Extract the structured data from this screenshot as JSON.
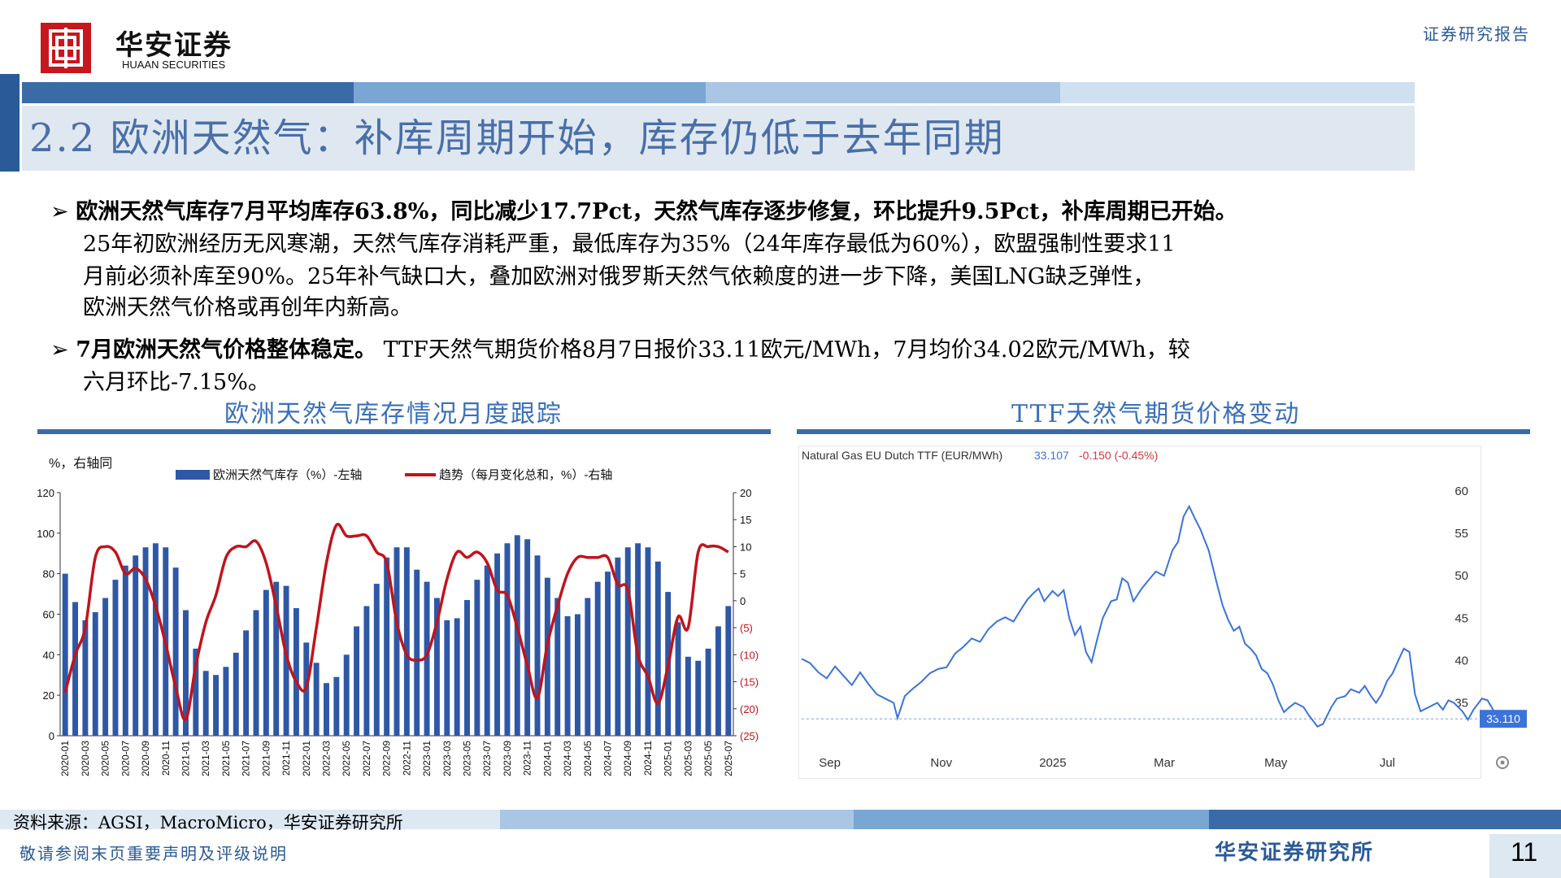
{
  "header": {
    "logo_cn": "华安证券",
    "logo_en": "HUAAN SECURITIES",
    "report_type": "证券研究报告",
    "logo_glyph": "出"
  },
  "title": "2.2 欧洲天然气：补库周期开始，库存仍低于去年同期",
  "bullets": [
    {
      "marker": "➢",
      "bold": "欧洲天然气库存7月平均库存63.8%，同比减少17.7Pct，天然气库存逐步修复，环比提升9.5Pct，补库周期已开始。",
      "lines": [
        "25年初欧洲经历无风寒潮，天然气库存消耗严重，最低库存为35%（24年库存最低为60%），欧盟强制性要求11",
        "月前必须补库至90%。25年补气缺口大，叠加欧洲对俄罗斯天然气依赖度的进一步下降，美国LNG缺乏弹性，",
        "欧洲天然气价格或再创年内新高。"
      ]
    },
    {
      "marker": "➢",
      "bold": "7月欧洲天然气价格整体稳定。",
      "rest": " TTF天然气期货价格8月7日报价33.11欧元/MWh，7月均价34.02欧元/MWh，较",
      "lines": [
        "六月环比-7.15%。"
      ]
    }
  ],
  "chart_titles": {
    "left": "欧洲天然气库存情况月度跟踪",
    "right": "TTF天然气期货价格变动"
  },
  "footer": {
    "source": "资料来源：AGSI，MacroMicro，华安证券研究所",
    "notice": "敬请参阅末页重要声明及评级说明",
    "institute": "华安证券研究所",
    "page": "11"
  },
  "colors": {
    "brand_blue": "#2a5a97",
    "bar_blue": "#2e58a6",
    "trend_red": "#c0141c",
    "ttf_line": "#3b73d9",
    "logo_red": "#c8161d"
  },
  "chart_data": [
    {
      "type": "bar",
      "title": "",
      "unit_label": "%，右轴同",
      "categories": [
        "2020-01",
        "2020-02",
        "2020-03",
        "2020-04",
        "2020-05",
        "2020-06",
        "2020-07",
        "2020-08",
        "2020-09",
        "2020-10",
        "2020-11",
        "2020-12",
        "2021-01",
        "2021-02",
        "2021-03",
        "2021-04",
        "2021-05",
        "2021-06",
        "2021-07",
        "2021-08",
        "2021-09",
        "2021-10",
        "2021-11",
        "2021-12",
        "2022-01",
        "2022-02",
        "2022-03",
        "2022-04",
        "2022-05",
        "2022-06",
        "2022-07",
        "2022-08",
        "2022-09",
        "2022-10",
        "2022-11",
        "2022-12",
        "2023-01",
        "2023-02",
        "2023-03",
        "2023-04",
        "2023-05",
        "2023-06",
        "2023-07",
        "2023-08",
        "2023-09",
        "2023-10",
        "2023-11",
        "2023-12",
        "2024-01",
        "2024-02",
        "2024-03",
        "2024-04",
        "2024-05",
        "2024-06",
        "2024-07",
        "2024-08",
        "2024-09",
        "2024-10",
        "2024-11",
        "2024-12",
        "2025-01",
        "2025-02",
        "2025-03",
        "2025-04",
        "2025-05",
        "2025-06",
        "2025-07"
      ],
      "x_tick_labels": [
        "2020-01",
        "2020-03",
        "2020-05",
        "2020-07",
        "2020-09",
        "2020-11",
        "2021-01",
        "2021-03",
        "2021-05",
        "2021-07",
        "2021-09",
        "2021-11",
        "2022-01",
        "2022-03",
        "2022-05",
        "2022-07",
        "2022-09",
        "2022-11",
        "2023-01",
        "2023-03",
        "2023-05",
        "2023-07",
        "2023-09",
        "2023-11",
        "2024-01",
        "2024-03",
        "2024-05",
        "2024-07",
        "2024-09",
        "2024-11",
        "2025-01",
        "2025-03",
        "2025-05",
        "2025-07"
      ],
      "series": [
        {
          "name": "欧洲天然气库存（%）-左轴",
          "axis": "left",
          "values": [
            80,
            66,
            57,
            61,
            68,
            77,
            84,
            89,
            93,
            95,
            93,
            83,
            62,
            43,
            32,
            30,
            34,
            41,
            52,
            62,
            72,
            76,
            74,
            63,
            46,
            36,
            26,
            29,
            40,
            54,
            64,
            75,
            88,
            93,
            93,
            82,
            76,
            68,
            57,
            58,
            67,
            77,
            84,
            90,
            95,
            99,
            97,
            89,
            78,
            68,
            59,
            60,
            68,
            76,
            81,
            88,
            93,
            95,
            93,
            86,
            71,
            56,
            39,
            37,
            43,
            54,
            64
          ]
        },
        {
          "name": "趋势（每月变化总和，%）-右轴",
          "axis": "right",
          "values": [
            -17,
            -10,
            -5,
            8,
            10,
            9,
            5,
            6,
            4,
            -1,
            -8,
            -16,
            -22,
            -12,
            -4,
            1,
            8,
            10,
            10,
            11,
            7,
            -1,
            -10,
            -15,
            -16,
            -5,
            7,
            14,
            12,
            12,
            12,
            9,
            7,
            -4,
            -10,
            -11,
            -10,
            -4,
            4,
            9,
            8,
            9,
            7,
            2,
            1,
            -5,
            -12,
            -18,
            -8,
            -1,
            5,
            8,
            8,
            8,
            8,
            3,
            2,
            -10,
            -14,
            -19,
            -12,
            -3,
            -5,
            9,
            10,
            10,
            9
          ]
        }
      ],
      "left_axis": {
        "ticks": [
          0,
          20,
          40,
          60,
          80,
          100,
          120
        ],
        "ylim": [
          0,
          120
        ]
      },
      "right_axis": {
        "ticks": [
          "20",
          "15",
          "10",
          "5",
          "0",
          "(5)",
          "(10)",
          "(15)",
          "(20)",
          "(25)"
        ],
        "ylim": [
          -25,
          20
        ]
      },
      "legend": "top"
    },
    {
      "type": "line",
      "title": "Natural Gas EU Dutch TTF (EUR/MWh)",
      "last_price": "33.107",
      "change": "-0.150 (-0.45%)",
      "price_label": "33.110",
      "x_tick_labels": [
        "Sep",
        "Nov",
        "2025",
        "Mar",
        "May",
        "Jul"
      ],
      "y_ticks": [
        35,
        40,
        45,
        50,
        55,
        60
      ],
      "ylim": [
        31.5,
        62.5
      ],
      "x_range_months": [
        0,
        12
      ],
      "series": [
        {
          "name": "",
          "points": [
            [
              0.0,
              40.2
            ],
            [
              0.15,
              39.7
            ],
            [
              0.3,
              38.6
            ],
            [
              0.45,
              37.9
            ],
            [
              0.6,
              39.3
            ],
            [
              0.75,
              38.2
            ],
            [
              0.9,
              37.1
            ],
            [
              1.05,
              38.6
            ],
            [
              1.2,
              37.2
            ],
            [
              1.35,
              36.0
            ],
            [
              1.5,
              35.5
            ],
            [
              1.65,
              35.0
            ],
            [
              1.72,
              33.2
            ],
            [
              1.85,
              35.8
            ],
            [
              2.0,
              36.7
            ],
            [
              2.15,
              37.5
            ],
            [
              2.3,
              38.5
            ],
            [
              2.45,
              39.0
            ],
            [
              2.6,
              39.2
            ],
            [
              2.75,
              40.8
            ],
            [
              2.9,
              41.6
            ],
            [
              3.05,
              42.6
            ],
            [
              3.2,
              42.2
            ],
            [
              3.35,
              43.7
            ],
            [
              3.5,
              44.6
            ],
            [
              3.65,
              45.1
            ],
            [
              3.8,
              44.6
            ],
            [
              3.95,
              46.2
            ],
            [
              4.05,
              47.2
            ],
            [
              4.15,
              47.9
            ],
            [
              4.25,
              48.5
            ],
            [
              4.35,
              47.0
            ],
            [
              4.5,
              48.2
            ],
            [
              4.6,
              47.6
            ],
            [
              4.7,
              48.3
            ],
            [
              4.8,
              45.0
            ],
            [
              4.9,
              43.0
            ],
            [
              5.0,
              44.0
            ],
            [
              5.1,
              41.0
            ],
            [
              5.2,
              39.8
            ],
            [
              5.3,
              42.5
            ],
            [
              5.4,
              45.0
            ],
            [
              5.55,
              47.0
            ],
            [
              5.65,
              47.2
            ],
            [
              5.75,
              49.7
            ],
            [
              5.85,
              49.2
            ],
            [
              5.95,
              47.0
            ],
            [
              6.1,
              48.5
            ],
            [
              6.2,
              49.3
            ],
            [
              6.35,
              50.5
            ],
            [
              6.5,
              50.0
            ],
            [
              6.65,
              53.0
            ],
            [
              6.75,
              54.0
            ],
            [
              6.85,
              57.0
            ],
            [
              6.95,
              58.2
            ],
            [
              7.05,
              56.8
            ],
            [
              7.15,
              55.5
            ],
            [
              7.3,
              53.0
            ],
            [
              7.45,
              49.0
            ],
            [
              7.55,
              46.5
            ],
            [
              7.65,
              44.8
            ],
            [
              7.75,
              43.5
            ],
            [
              7.85,
              44.0
            ],
            [
              7.95,
              42.0
            ],
            [
              8.05,
              41.4
            ],
            [
              8.15,
              40.6
            ],
            [
              8.25,
              39.0
            ],
            [
              8.35,
              38.5
            ],
            [
              8.45,
              37.2
            ],
            [
              8.55,
              35.3
            ],
            [
              8.65,
              33.9
            ],
            [
              8.75,
              34.5
            ],
            [
              8.85,
              35.0
            ],
            [
              9.0,
              34.5
            ],
            [
              9.1,
              33.5
            ],
            [
              9.25,
              32.2
            ],
            [
              9.35,
              32.5
            ],
            [
              9.5,
              34.5
            ],
            [
              9.6,
              35.5
            ],
            [
              9.75,
              35.8
            ],
            [
              9.85,
              36.6
            ],
            [
              10.0,
              36.2
            ],
            [
              10.1,
              37.0
            ],
            [
              10.2,
              35.9
            ],
            [
              10.3,
              35.0
            ],
            [
              10.4,
              36.0
            ],
            [
              10.5,
              37.6
            ],
            [
              10.6,
              38.5
            ],
            [
              10.7,
              40.0
            ],
            [
              10.8,
              41.4
            ],
            [
              10.9,
              41.0
            ],
            [
              11.0,
              36.0
            ],
            [
              11.1,
              34.0
            ],
            [
              11.25,
              34.5
            ],
            [
              11.4,
              35.0
            ],
            [
              11.5,
              34.2
            ],
            [
              11.6,
              35.3
            ],
            [
              11.7,
              35.0
            ],
            [
              11.85,
              34.0
            ],
            [
              11.95,
              33.0
            ],
            [
              12.05,
              34.2
            ],
            [
              12.2,
              35.5
            ],
            [
              12.3,
              35.3
            ],
            [
              12.4,
              34.2
            ],
            [
              12.5,
              33.11
            ]
          ]
        }
      ]
    }
  ]
}
